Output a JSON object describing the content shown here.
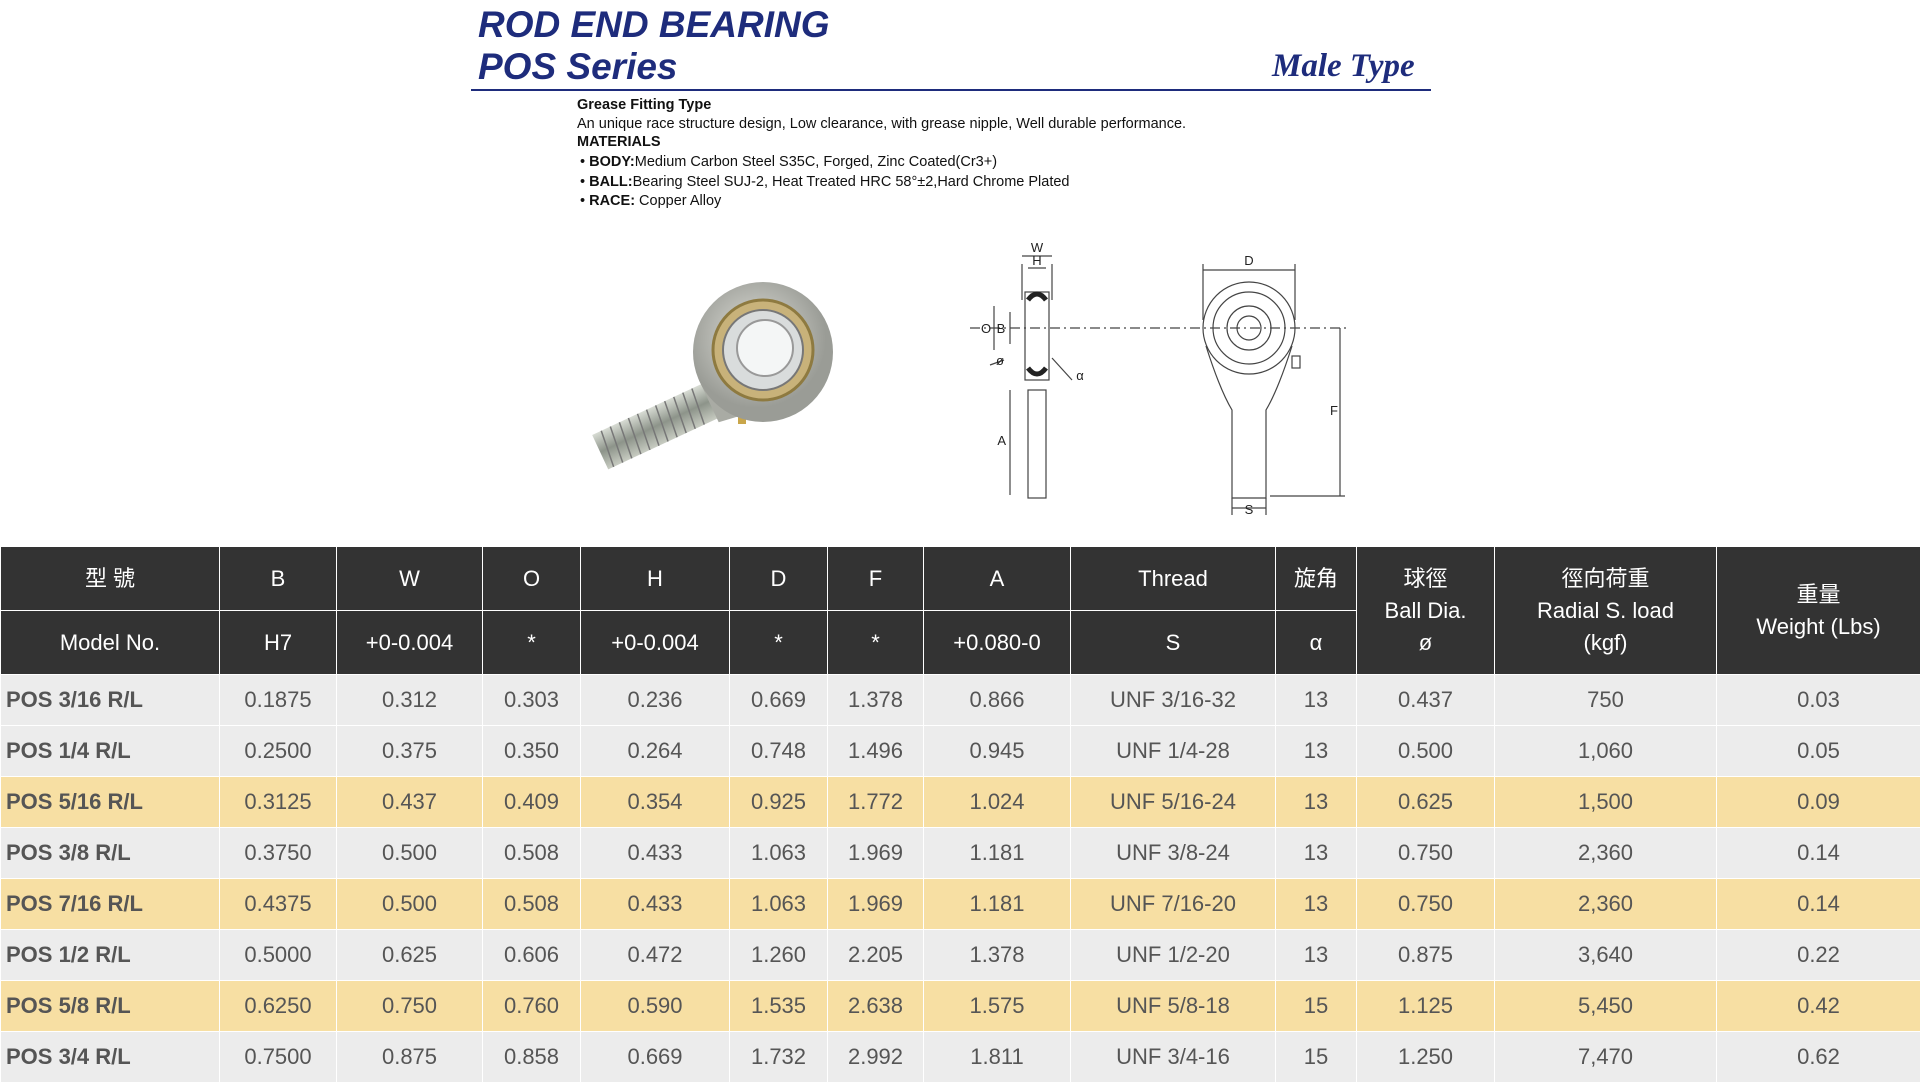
{
  "header": {
    "title_line1": "ROD END BEARING",
    "title_line2": "POS Series",
    "subtitle": "Male Type"
  },
  "description": {
    "heading": "Grease Fitting Type",
    "text": "An unique race structure design, Low clearance, with grease nipple, Well durable performance.",
    "materials_heading": "MATERIALS",
    "materials": [
      {
        "label": "BODY:",
        "text": "Medium Carbon Steel S35C, Forged, Zinc Coated(Cr3+)"
      },
      {
        "label": "BALL:",
        "text": "Bearing Steel SUJ-2, Heat Treated HRC 58°±2,Hard Chrome Plated"
      },
      {
        "label": "RACE:",
        "text": " Copper Alloy"
      }
    ]
  },
  "diagram": {
    "labels": [
      "W",
      "H",
      "O",
      "B",
      "ø",
      "α",
      "D",
      "F",
      "A",
      "S"
    ]
  },
  "table": {
    "header_top": [
      [
        "型 號"
      ],
      [
        "B"
      ],
      [
        "W"
      ],
      [
        "O"
      ],
      [
        "H"
      ],
      [
        "D"
      ],
      [
        "F"
      ],
      [
        "A"
      ],
      [
        "Thread"
      ],
      [
        "旋角"
      ],
      [
        "球徑",
        "Ball Dia.",
        "ø"
      ],
      [
        "徑向荷重",
        "Radial S. load",
        "(kgf)"
      ],
      [
        "重量",
        "Weight (Lbs)"
      ]
    ],
    "header_bottom": [
      "Model No.",
      "H7",
      "+0-0.004",
      "*",
      "+0-0.004",
      "*",
      "*",
      "+0.080-0",
      "S",
      "α"
    ],
    "rows": [
      [
        "POS 3/16 R/L",
        "0.1875",
        "0.312",
        "0.303",
        "0.236",
        "0.669",
        "1.378",
        "0.866",
        "UNF 3/16-32",
        "13",
        "0.437",
        "750",
        "0.03"
      ],
      [
        "POS 1/4 R/L",
        "0.2500",
        "0.375",
        "0.350",
        "0.264",
        "0.748",
        "1.496",
        "0.945",
        "UNF 1/4-28",
        "13",
        "0.500",
        "1,060",
        "0.05"
      ],
      [
        "POS 5/16 R/L",
        "0.3125",
        "0.437",
        "0.409",
        "0.354",
        "0.925",
        "1.772",
        "1.024",
        "UNF 5/16-24",
        "13",
        "0.625",
        "1,500",
        "0.09"
      ],
      [
        "POS 3/8 R/L",
        "0.3750",
        "0.500",
        "0.508",
        "0.433",
        "1.063",
        "1.969",
        "1.181",
        "UNF 3/8-24",
        "13",
        "0.750",
        "2,360",
        "0.14"
      ],
      [
        "POS 7/16 R/L",
        "0.4375",
        "0.500",
        "0.508",
        "0.433",
        "1.063",
        "1.969",
        "1.181",
        "UNF 7/16-20",
        "13",
        "0.750",
        "2,360",
        "0.14"
      ],
      [
        "POS 1/2 R/L",
        "0.5000",
        "0.625",
        "0.606",
        "0.472",
        "1.260",
        "2.205",
        "1.378",
        "UNF 1/2-20",
        "13",
        "0.875",
        "3,640",
        "0.22"
      ],
      [
        "POS 5/8 R/L",
        "0.6250",
        "0.750",
        "0.760",
        "0.590",
        "1.535",
        "2.638",
        "1.575",
        "UNF 5/8-18",
        "15",
        "1.125",
        "5,450",
        "0.42"
      ],
      [
        "POS 3/4 R/L",
        "0.7500",
        "0.875",
        "0.858",
        "0.669",
        "1.732",
        "2.992",
        "1.811",
        "UNF 3/4-16",
        "15",
        "1.250",
        "7,470",
        "0.62"
      ]
    ]
  }
}
